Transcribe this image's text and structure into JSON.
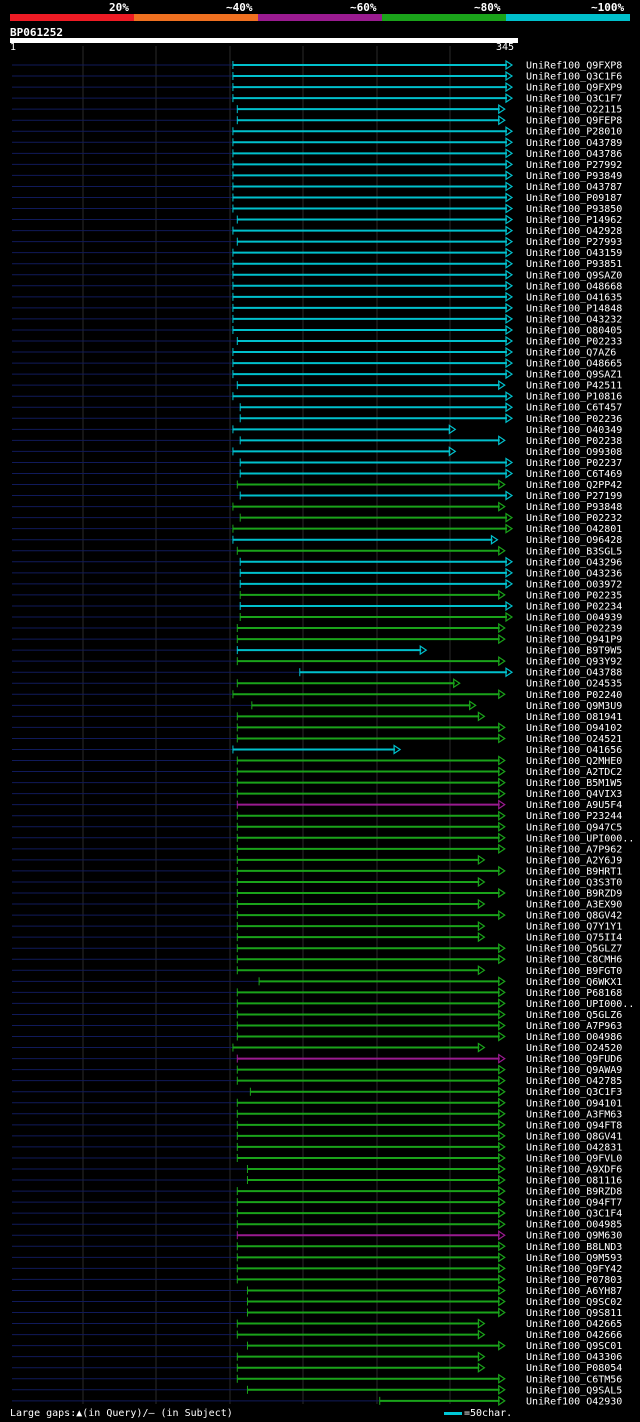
{
  "scale": {
    "segments": [
      {
        "label": "20%",
        "color": "#ee1b24"
      },
      {
        "label": "~40%",
        "color": "#f07020"
      },
      {
        "label": "~60%",
        "color": "#9a1b90"
      },
      {
        "label": "~80%",
        "color": "#1aa31a"
      },
      {
        "label": "~100%",
        "color": "#00c0cc"
      }
    ]
  },
  "query": {
    "name": "BP061252",
    "start_label": "1",
    "end_label": "345",
    "length": 345
  },
  "footer": {
    "text": "Large gaps:▲(in Query)/– (in Subject)"
  },
  "legend": {
    "text": "=50char."
  },
  "hits": [
    {
      "label": "UniRef100_Q9FXP8",
      "start": 153,
      "end": 345,
      "level": 5
    },
    {
      "label": "UniRef100_Q3C1F6",
      "start": 153,
      "end": 345,
      "level": 5
    },
    {
      "label": "UniRef100_Q9FXP9",
      "start": 153,
      "end": 345,
      "level": 5
    },
    {
      "label": "UniRef100_Q3C1F7",
      "start": 153,
      "end": 345,
      "level": 5
    },
    {
      "label": "UniRef100_O22115",
      "start": 156,
      "end": 340,
      "level": 5
    },
    {
      "label": "UniRef100_Q9FEP8",
      "start": 156,
      "end": 340,
      "level": 5
    },
    {
      "label": "UniRef100_P28010",
      "start": 153,
      "end": 345,
      "level": 5
    },
    {
      "label": "UniRef100_O43789",
      "start": 153,
      "end": 345,
      "level": 5
    },
    {
      "label": "UniRef100_O43786",
      "start": 153,
      "end": 345,
      "level": 5
    },
    {
      "label": "UniRef100_P27992",
      "start": 153,
      "end": 345,
      "level": 5
    },
    {
      "label": "UniRef100_P93849",
      "start": 153,
      "end": 345,
      "level": 5
    },
    {
      "label": "UniRef100_O43787",
      "start": 153,
      "end": 345,
      "level": 5
    },
    {
      "label": "UniRef100_P09187",
      "start": 153,
      "end": 345,
      "level": 5
    },
    {
      "label": "UniRef100_P93850",
      "start": 153,
      "end": 345,
      "level": 5
    },
    {
      "label": "UniRef100_P14962",
      "start": 156,
      "end": 345,
      "level": 5
    },
    {
      "label": "UniRef100_O42928",
      "start": 153,
      "end": 345,
      "level": 5
    },
    {
      "label": "UniRef100_P27993",
      "start": 156,
      "end": 345,
      "level": 5
    },
    {
      "label": "UniRef100_O43159",
      "start": 153,
      "end": 345,
      "level": 5
    },
    {
      "label": "UniRef100_P93851",
      "start": 153,
      "end": 345,
      "level": 5
    },
    {
      "label": "UniRef100_Q9SAZ0",
      "start": 153,
      "end": 345,
      "level": 5
    },
    {
      "label": "UniRef100_O48668",
      "start": 153,
      "end": 345,
      "level": 5
    },
    {
      "label": "UniRef100_O41635",
      "start": 153,
      "end": 345,
      "level": 5
    },
    {
      "label": "UniRef100_P14848",
      "start": 153,
      "end": 345,
      "level": 5
    },
    {
      "label": "UniRef100_O43232",
      "start": 153,
      "end": 345,
      "level": 5
    },
    {
      "label": "UniRef100_O80405",
      "start": 153,
      "end": 345,
      "level": 5
    },
    {
      "label": "UniRef100_P02233",
      "start": 156,
      "end": 345,
      "level": 5
    },
    {
      "label": "UniRef100_Q7AZ6",
      "start": 153,
      "end": 345,
      "level": 5
    },
    {
      "label": "UniRef100_O48665",
      "start": 153,
      "end": 345,
      "level": 5
    },
    {
      "label": "UniRef100_Q9SAZ1",
      "start": 153,
      "end": 345,
      "level": 5
    },
    {
      "label": "UniRef100_P42511",
      "start": 156,
      "end": 340,
      "level": 5
    },
    {
      "label": "UniRef100_P10816",
      "start": 153,
      "end": 345,
      "level": 5
    },
    {
      "label": "UniRef100_C6T457",
      "start": 158,
      "end": 345,
      "level": 5
    },
    {
      "label": "UniRef100_P02236",
      "start": 158,
      "end": 345,
      "level": 5
    },
    {
      "label": "UniRef100_O40349",
      "start": 153,
      "end": 306,
      "level": 5
    },
    {
      "label": "UniRef100_P02238",
      "start": 158,
      "end": 340,
      "level": 5
    },
    {
      "label": "UniRef100_O99308",
      "start": 153,
      "end": 306,
      "level": 5
    },
    {
      "label": "UniRef100_P02237",
      "start": 158,
      "end": 345,
      "level": 5
    },
    {
      "label": "UniRef100_C6T469",
      "start": 158,
      "end": 345,
      "level": 5
    },
    {
      "label": "UniRef100_Q2PP42",
      "start": 156,
      "end": 340,
      "level": 4
    },
    {
      "label": "UniRef100_P27199",
      "start": 158,
      "end": 345,
      "level": 5
    },
    {
      "label": "UniRef100_P93848",
      "start": 153,
      "end": 340,
      "level": 4
    },
    {
      "label": "UniRef100_P02232",
      "start": 158,
      "end": 345,
      "level": 4
    },
    {
      "label": "UniRef100_O42801",
      "start": 153,
      "end": 345,
      "level": 4
    },
    {
      "label": "UniRef100_O96428",
      "start": 153,
      "end": 335,
      "level": 5
    },
    {
      "label": "UniRef100_B3SGL5",
      "start": 156,
      "end": 340,
      "level": 4
    },
    {
      "label": "UniRef100_O43296",
      "start": 158,
      "end": 345,
      "level": 5
    },
    {
      "label": "UniRef100_O43236",
      "start": 158,
      "end": 345,
      "level": 5
    },
    {
      "label": "UniRef100_O03972",
      "start": 158,
      "end": 345,
      "level": 5
    },
    {
      "label": "UniRef100_P02235",
      "start": 158,
      "end": 340,
      "level": 4
    },
    {
      "label": "UniRef100_P02234",
      "start": 158,
      "end": 345,
      "level": 5
    },
    {
      "label": "UniRef100_O04939",
      "start": 158,
      "end": 345,
      "level": 4
    },
    {
      "label": "UniRef100_P02239",
      "start": 156,
      "end": 340,
      "level": 4
    },
    {
      "label": "UniRef100_Q941P9",
      "start": 156,
      "end": 340,
      "level": 4
    },
    {
      "label": "UniRef100_B9T9W5",
      "start": 156,
      "end": 286,
      "level": 5
    },
    {
      "label": "UniRef100_Q93Y92",
      "start": 156,
      "end": 340,
      "level": 4
    },
    {
      "label": "UniRef100_O43788",
      "start": 199,
      "end": 345,
      "level": 5
    },
    {
      "label": "UniRef100_O24535",
      "start": 156,
      "end": 309,
      "level": 4
    },
    {
      "label": "UniRef100_P02240",
      "start": 153,
      "end": 340,
      "level": 4
    },
    {
      "label": "UniRef100_Q9M3U9",
      "start": 166,
      "end": 320,
      "level": 4
    },
    {
      "label": "UniRef100_O81941",
      "start": 156,
      "end": 326,
      "level": 4
    },
    {
      "label": "UniRef100_O94102",
      "start": 156,
      "end": 340,
      "level": 4
    },
    {
      "label": "UniRef100_O24521",
      "start": 156,
      "end": 340,
      "level": 4
    },
    {
      "label": "UniRef100_O41656",
      "start": 153,
      "end": 268,
      "level": 5
    },
    {
      "label": "UniRef100_Q2MHE0",
      "start": 156,
      "end": 340,
      "level": 4
    },
    {
      "label": "UniRef100_A2TDC2",
      "start": 156,
      "end": 340,
      "level": 4
    },
    {
      "label": "UniRef100_B5M1W5",
      "start": 156,
      "end": 340,
      "level": 4
    },
    {
      "label": "UniRef100_Q4VIX3",
      "start": 156,
      "end": 340,
      "level": 4
    },
    {
      "label": "UniRef100_A9U5F4",
      "start": 156,
      "end": 340,
      "level": 3
    },
    {
      "label": "UniRef100_P23244",
      "start": 156,
      "end": 340,
      "level": 4
    },
    {
      "label": "UniRef100_Q947C5",
      "start": 156,
      "end": 340,
      "level": 4
    },
    {
      "label": "UniRef100_UPI000..",
      "start": 156,
      "end": 340,
      "level": 4
    },
    {
      "label": "UniRef100_A7P962",
      "start": 156,
      "end": 340,
      "level": 4
    },
    {
      "label": "UniRef100_A2Y6J9",
      "start": 156,
      "end": 326,
      "level": 4
    },
    {
      "label": "UniRef100_B9HRT1",
      "start": 156,
      "end": 340,
      "level": 4
    },
    {
      "label": "UniRef100_Q3S3T0",
      "start": 156,
      "end": 326,
      "level": 4
    },
    {
      "label": "UniRef100_B9RZD9",
      "start": 156,
      "end": 340,
      "level": 4
    },
    {
      "label": "UniRef100_A3EX90",
      "start": 156,
      "end": 326,
      "level": 4
    },
    {
      "label": "UniRef100_Q8GV42",
      "start": 156,
      "end": 340,
      "level": 4
    },
    {
      "label": "UniRef100_Q7Y1Y1",
      "start": 156,
      "end": 326,
      "level": 4
    },
    {
      "label": "UniRef100_Q75II4",
      "start": 156,
      "end": 326,
      "level": 4
    },
    {
      "label": "UniRef100_Q5GLZ7",
      "start": 156,
      "end": 340,
      "level": 4
    },
    {
      "label": "UniRef100_C8CMH6",
      "start": 156,
      "end": 340,
      "level": 4
    },
    {
      "label": "UniRef100_B9FGT0",
      "start": 156,
      "end": 326,
      "level": 4
    },
    {
      "label": "UniRef100_Q6WKX1",
      "start": 171,
      "end": 340,
      "level": 4
    },
    {
      "label": "UniRef100_P68168",
      "start": 156,
      "end": 340,
      "level": 4
    },
    {
      "label": "UniRef100_UPI000..",
      "start": 156,
      "end": 340,
      "level": 4
    },
    {
      "label": "UniRef100_Q5GLZ6",
      "start": 156,
      "end": 340,
      "level": 4
    },
    {
      "label": "UniRef100_A7P963",
      "start": 156,
      "end": 340,
      "level": 4
    },
    {
      "label": "UniRef100_O04986",
      "start": 156,
      "end": 340,
      "level": 4
    },
    {
      "label": "UniRef100_O24520",
      "start": 153,
      "end": 326,
      "level": 4
    },
    {
      "label": "UniRef100_Q9FUD6",
      "start": 156,
      "end": 340,
      "level": 3
    },
    {
      "label": "UniRef100_Q9AWA9",
      "start": 156,
      "end": 340,
      "level": 4
    },
    {
      "label": "UniRef100_O42785",
      "start": 156,
      "end": 340,
      "level": 4
    },
    {
      "label": "UniRef100_Q3C1F3",
      "start": 165,
      "end": 340,
      "level": 4
    },
    {
      "label": "UniRef100_O94101",
      "start": 156,
      "end": 340,
      "level": 4
    },
    {
      "label": "UniRef100_A3FM63",
      "start": 156,
      "end": 340,
      "level": 4
    },
    {
      "label": "UniRef100_Q94FT8",
      "start": 156,
      "end": 340,
      "level": 4
    },
    {
      "label": "UniRef100_Q8GV41",
      "start": 156,
      "end": 340,
      "level": 4
    },
    {
      "label": "UniRef100_O42831",
      "start": 156,
      "end": 340,
      "level": 4
    },
    {
      "label": "UniRef100_Q9FVL0",
      "start": 156,
      "end": 340,
      "level": 4
    },
    {
      "label": "UniRef100_A9XDF6",
      "start": 163,
      "end": 340,
      "level": 4
    },
    {
      "label": "UniRef100_O81116",
      "start": 163,
      "end": 340,
      "level": 4
    },
    {
      "label": "UniRef100_B9RZD8",
      "start": 156,
      "end": 340,
      "level": 4
    },
    {
      "label": "UniRef100_Q94FT7",
      "start": 156,
      "end": 340,
      "level": 4
    },
    {
      "label": "UniRef100_Q3C1F4",
      "start": 156,
      "end": 340,
      "level": 4
    },
    {
      "label": "UniRef100_O04985",
      "start": 156,
      "end": 340,
      "level": 4
    },
    {
      "label": "UniRef100_Q9M630",
      "start": 156,
      "end": 340,
      "level": 3
    },
    {
      "label": "UniRef100_B8LND3",
      "start": 156,
      "end": 340,
      "level": 4
    },
    {
      "label": "UniRef100_Q9M593",
      "start": 156,
      "end": 340,
      "level": 4
    },
    {
      "label": "UniRef100_Q9FY42",
      "start": 156,
      "end": 340,
      "level": 4
    },
    {
      "label": "UniRef100_P07803",
      "start": 156,
      "end": 340,
      "level": 4
    },
    {
      "label": "UniRef100_A6YH87",
      "start": 163,
      "end": 340,
      "level": 4
    },
    {
      "label": "UniRef100_Q9SC02",
      "start": 163,
      "end": 340,
      "level": 4
    },
    {
      "label": "UniRef100_Q9S811",
      "start": 163,
      "end": 340,
      "level": 4
    },
    {
      "label": "UniRef100_O42665",
      "start": 156,
      "end": 326,
      "level": 4
    },
    {
      "label": "UniRef100_O42666",
      "start": 156,
      "end": 326,
      "level": 4
    },
    {
      "label": "UniRef100_Q9SC01",
      "start": 163,
      "end": 340,
      "level": 4
    },
    {
      "label": "UniRef100_O43306",
      "start": 156,
      "end": 326,
      "level": 4
    },
    {
      "label": "UniRef100_P08054",
      "start": 156,
      "end": 326,
      "level": 4
    },
    {
      "label": "UniRef100_C6TM56",
      "start": 156,
      "end": 340,
      "level": 4
    },
    {
      "label": "UniRef100_Q9SAL5",
      "start": 163,
      "end": 340,
      "level": 4
    },
    {
      "label": "UniRef100_O42930",
      "start": 254,
      "end": 340,
      "level": 4
    }
  ]
}
